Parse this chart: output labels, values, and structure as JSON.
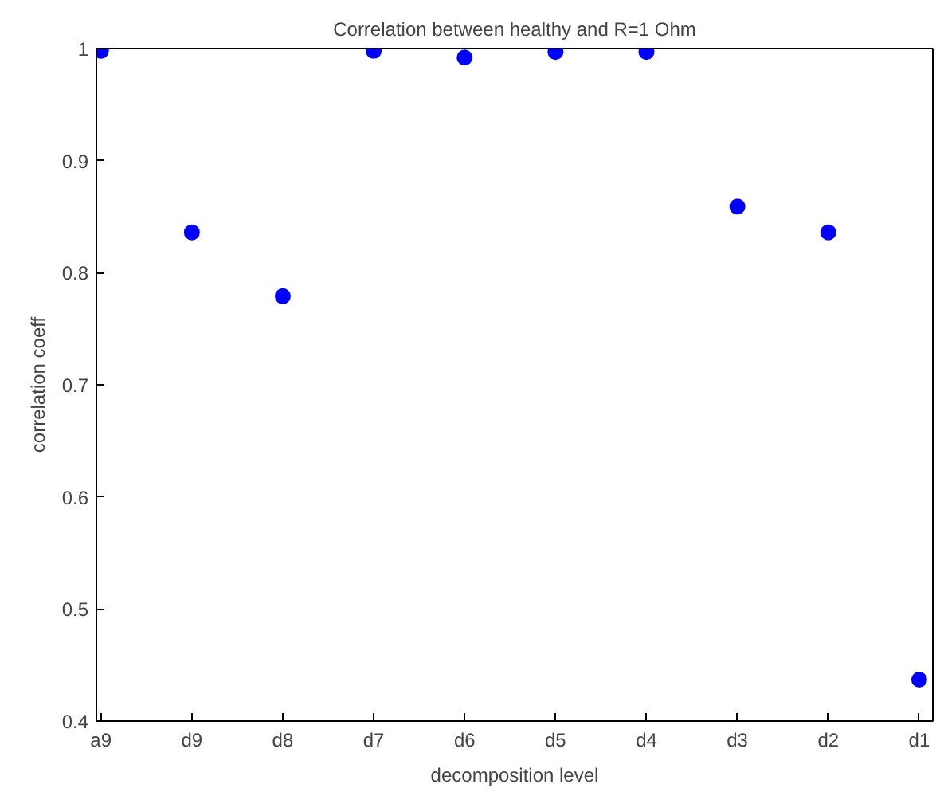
{
  "chart_data": {
    "type": "scatter",
    "title": "Correlation between healthy and R=1 Ohm",
    "xlabel": "decomposition level",
    "ylabel": "correlation coeff",
    "categories": [
      "a9",
      "d9",
      "d8",
      "d7",
      "d6",
      "d5",
      "d4",
      "d3",
      "d2",
      "d1"
    ],
    "series": [
      {
        "color": "#0000ff",
        "values": [
          0.998,
          0.836,
          0.779,
          0.998,
          0.992,
          0.997,
          0.997,
          0.859,
          0.836,
          0.437
        ]
      }
    ],
    "ylim": [
      0.4,
      1
    ],
    "yticks": [
      0.4,
      0.5,
      0.6,
      0.7,
      0.8,
      0.9,
      1
    ],
    "grid": false,
    "marker": "circle"
  }
}
